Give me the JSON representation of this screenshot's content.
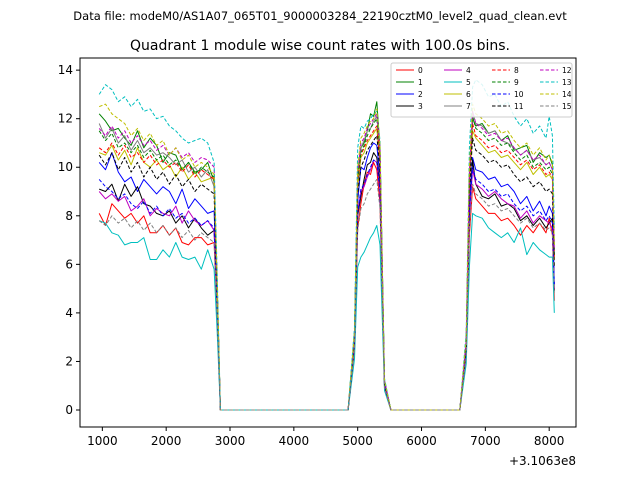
{
  "suptitle": "Data file: modeM0/AS1A07_065T01_9000003284_22190cztM0_level2_quad_clean.evt",
  "chart_data": {
    "type": "line",
    "title": "Quadrant 1 module wise count rates with 100.0s bins.",
    "xlabel": "",
    "ylabel": "",
    "x_offset_label": "+3.1063e8",
    "xlim": [
      650,
      8420
    ],
    "ylim": [
      -0.7,
      14.5
    ],
    "xticks": [
      1000,
      2000,
      3000,
      4000,
      5000,
      6000,
      7000,
      8000
    ],
    "yticks": [
      0,
      2,
      4,
      6,
      8,
      10,
      12,
      14
    ],
    "legend_position": "top-right",
    "x": [
      950,
      1050,
      1150,
      1250,
      1350,
      1450,
      1550,
      1650,
      1750,
      1850,
      1950,
      2050,
      2150,
      2250,
      2350,
      2450,
      2550,
      2650,
      2750,
      2800,
      2850,
      2880,
      4850,
      4950,
      5000,
      5050,
      5100,
      5150,
      5200,
      5250,
      5300,
      5350,
      5420,
      5520,
      6600,
      6700,
      6750,
      6800,
      6850,
      6950,
      7050,
      7150,
      7250,
      7350,
      7450,
      7550,
      7650,
      7750,
      7850,
      7950,
      8000,
      8050,
      8080
    ],
    "series": [
      {
        "name": "0",
        "color": "#ff0000",
        "style": "solid",
        "values": [
          8.1,
          7.6,
          8.5,
          8.2,
          7.9,
          8.1,
          7.7,
          8.0,
          7.3,
          7.3,
          7.6,
          7.2,
          7.5,
          6.9,
          6.8,
          7.1,
          7.1,
          6.8,
          6.9,
          4.0,
          0.0,
          0.0,
          0.0,
          2.5,
          7.5,
          8.5,
          9.3,
          9.8,
          9.7,
          10.2,
          9.9,
          8.5,
          0.9,
          0.0,
          0.0,
          2.2,
          7.2,
          9.2,
          8.7,
          8.4,
          8.1,
          8.1,
          7.8,
          7.9,
          7.6,
          7.2,
          7.6,
          7.3,
          7.7,
          7.3,
          7.9,
          7.2,
          4.5
        ]
      },
      {
        "name": "1",
        "color": "#008000",
        "style": "solid",
        "values": [
          12.2,
          11.9,
          11.5,
          11.6,
          11.2,
          10.9,
          11.5,
          10.8,
          11.2,
          10.9,
          10.2,
          10.6,
          10.5,
          9.9,
          10.2,
          9.8,
          9.9,
          10.2,
          9.4,
          5.0,
          0.0,
          0.0,
          0.0,
          3.2,
          9.6,
          10.8,
          11.0,
          11.5,
          12.2,
          12.1,
          12.7,
          10.8,
          1.2,
          0.0,
          0.0,
          2.8,
          9.6,
          12.0,
          11.7,
          11.8,
          11.4,
          11.5,
          11.1,
          11.3,
          10.7,
          10.8,
          10.9,
          10.2,
          10.6,
          10.4,
          10.5,
          10.1,
          6.8
        ]
      },
      {
        "name": "2",
        "color": "#0000ff",
        "style": "solid",
        "values": [
          10.2,
          9.9,
          10.6,
          9.8,
          9.4,
          9.6,
          9.0,
          9.5,
          9.2,
          8.9,
          9.2,
          9.0,
          8.5,
          9.1,
          8.3,
          8.7,
          8.4,
          8.1,
          8.2,
          4.4,
          0.0,
          0.0,
          0.0,
          2.9,
          8.6,
          10.0,
          9.9,
          10.4,
          10.8,
          11.0,
          10.9,
          9.6,
          1.1,
          0.0,
          0.0,
          2.5,
          8.6,
          10.4,
          9.9,
          9.8,
          9.5,
          9.6,
          9.2,
          9.3,
          9.0,
          8.5,
          8.8,
          8.2,
          8.6,
          8.0,
          8.4,
          8.1,
          5.2
        ]
      },
      {
        "name": "3",
        "color": "#000000",
        "style": "solid",
        "values": [
          9.1,
          9.0,
          9.3,
          8.6,
          9.3,
          8.8,
          9.2,
          8.5,
          8.4,
          8.1,
          8.0,
          8.2,
          7.7,
          8.0,
          7.5,
          7.9,
          7.5,
          7.2,
          7.4,
          4.1,
          0.0,
          0.0,
          0.0,
          2.7,
          8.0,
          8.8,
          9.5,
          10.1,
          10.2,
          10.6,
          10.4,
          9.2,
          1.0,
          0.0,
          0.0,
          2.4,
          8.0,
          10.3,
          9.3,
          8.8,
          8.7,
          8.9,
          8.4,
          8.5,
          8.3,
          7.8,
          8.0,
          7.6,
          7.9,
          7.5,
          7.7,
          7.9,
          4.9
        ]
      },
      {
        "name": "4",
        "color": "#bf00bf",
        "style": "solid",
        "values": [
          9.0,
          8.7,
          8.9,
          8.6,
          8.8,
          8.2,
          8.4,
          8.7,
          8.0,
          8.3,
          8.1,
          8.0,
          8.4,
          7.7,
          8.2,
          7.8,
          7.6,
          7.8,
          7.4,
          4.2,
          0.0,
          0.0,
          0.0,
          2.8,
          8.2,
          9.0,
          9.2,
          9.6,
          9.9,
          10.3,
          10.2,
          9.0,
          1.0,
          0.0,
          0.0,
          2.4,
          8.0,
          9.9,
          9.3,
          9.1,
          8.8,
          9.0,
          8.7,
          8.5,
          8.4,
          7.9,
          8.2,
          7.7,
          8.0,
          7.8,
          7.7,
          7.5,
          5.0
        ]
      },
      {
        "name": "5",
        "color": "#00bfbf",
        "style": "solid",
        "values": [
          7.8,
          7.7,
          7.3,
          7.2,
          6.8,
          6.9,
          6.9,
          7.1,
          6.2,
          6.2,
          6.6,
          6.3,
          6.9,
          6.3,
          6.2,
          6.3,
          5.8,
          6.6,
          5.8,
          3.2,
          0.0,
          0.0,
          0.0,
          2.1,
          5.9,
          6.3,
          6.5,
          6.8,
          7.1,
          7.3,
          7.6,
          6.8,
          0.8,
          0.0,
          0.0,
          1.9,
          5.9,
          8.1,
          8.0,
          7.9,
          7.5,
          7.3,
          7.1,
          7.3,
          6.9,
          7.5,
          6.4,
          6.9,
          6.6,
          6.4,
          6.3,
          6.3,
          4.0
        ]
      },
      {
        "name": "6",
        "color": "#bfbf00",
        "style": "solid",
        "values": [
          10.6,
          10.5,
          10.9,
          10.3,
          10.7,
          10.1,
          10.8,
          10.2,
          10.0,
          10.3,
          9.9,
          10.1,
          9.6,
          10.0,
          9.5,
          9.8,
          9.4,
          9.5,
          9.6,
          4.9,
          0.0,
          0.0,
          0.0,
          3.0,
          9.2,
          10.4,
          10.6,
          11.0,
          11.2,
          11.4,
          11.6,
          10.2,
          1.1,
          0.0,
          0.0,
          2.7,
          9.3,
          11.5,
          11.2,
          10.9,
          10.6,
          10.7,
          10.4,
          10.5,
          10.2,
          9.9,
          10.2,
          9.7,
          10.0,
          9.6,
          9.7,
          9.5,
          6.2
        ]
      },
      {
        "name": "7",
        "color": "#808080",
        "style": "solid",
        "values": [
          11.8,
          11.2,
          11.6,
          11.0,
          11.3,
          10.7,
          11.1,
          10.6,
          10.8,
          10.5,
          10.6,
          10.4,
          10.1,
          10.3,
          9.8,
          10.0,
          9.6,
          9.9,
          9.2,
          5.1,
          0.0,
          0.0,
          0.0,
          3.1,
          9.6,
          10.8,
          11.1,
          11.5,
          11.6,
          11.9,
          12.1,
          10.7,
          1.2,
          0.0,
          0.0,
          2.8,
          9.7,
          12.3,
          11.8,
          11.7,
          11.4,
          11.5,
          11.1,
          11.0,
          10.8,
          10.5,
          10.7,
          10.3,
          10.4,
          10.1,
          10.2,
          9.9,
          6.5
        ]
      },
      {
        "name": "8",
        "color": "#ff0000",
        "style": "dashed",
        "values": [
          10.8,
          10.6,
          11.0,
          10.5,
          10.9,
          10.4,
          10.6,
          10.2,
          10.5,
          10.1,
          10.3,
          10.0,
          10.2,
          9.8,
          10.1,
          9.6,
          9.9,
          9.7,
          9.5,
          5.0,
          0.0,
          0.0,
          0.0,
          3.0,
          9.4,
          10.5,
          10.8,
          11.1,
          11.3,
          11.5,
          11.7,
          10.3,
          1.1,
          0.0,
          0.0,
          2.7,
          9.5,
          11.8,
          11.3,
          11.1,
          10.8,
          10.9,
          10.6,
          10.7,
          10.4,
          10.1,
          10.3,
          9.9,
          10.1,
          9.7,
          9.8,
          9.6,
          6.3
        ]
      },
      {
        "name": "9",
        "color": "#008000",
        "style": "dashed",
        "values": [
          11.5,
          11.1,
          11.4,
          10.8,
          11.0,
          10.6,
          10.9,
          10.4,
          10.7,
          10.3,
          10.5,
          10.1,
          10.3,
          9.9,
          10.2,
          9.7,
          10.0,
          9.8,
          9.6,
          5.0,
          0.0,
          0.0,
          0.0,
          3.1,
          9.5,
          10.6,
          10.9,
          11.3,
          11.6,
          11.8,
          12.0,
          10.6,
          1.2,
          0.0,
          0.0,
          2.8,
          9.6,
          12.1,
          11.6,
          11.4,
          11.1,
          11.2,
          10.9,
          11.0,
          10.6,
          10.3,
          10.5,
          10.0,
          10.2,
          9.9,
          10.0,
          9.7,
          6.4
        ]
      },
      {
        "name": "10",
        "color": "#0000ff",
        "style": "dashed",
        "values": [
          9.5,
          9.2,
          9.0,
          8.7,
          8.9,
          8.5,
          8.3,
          8.6,
          8.1,
          8.4,
          8.0,
          8.3,
          7.9,
          8.1,
          7.7,
          7.9,
          7.6,
          7.8,
          7.5,
          4.2,
          0.0,
          0.0,
          0.0,
          2.8,
          8.1,
          9.1,
          9.3,
          9.7,
          10.0,
          10.3,
          10.2,
          9.0,
          1.0,
          0.0,
          0.0,
          2.5,
          8.2,
          10.0,
          9.5,
          9.3,
          9.0,
          9.1,
          8.8,
          8.9,
          8.5,
          8.2,
          8.4,
          8.0,
          8.2,
          7.8,
          8.0,
          7.7,
          5.1
        ]
      },
      {
        "name": "11",
        "color": "#000000",
        "style": "dashed",
        "values": [
          10.5,
          10.1,
          10.6,
          9.9,
          10.4,
          9.8,
          10.2,
          9.6,
          10.0,
          9.5,
          9.8,
          9.3,
          9.7,
          9.2,
          9.5,
          9.0,
          9.3,
          9.1,
          8.9,
          4.7,
          0.0,
          0.0,
          0.0,
          2.9,
          8.9,
          10.0,
          10.3,
          10.7,
          10.9,
          11.1,
          11.3,
          9.9,
          1.1,
          0.0,
          0.0,
          2.6,
          9.0,
          11.2,
          10.7,
          10.5,
          10.2,
          10.3,
          10.0,
          10.1,
          9.7,
          9.4,
          9.6,
          9.2,
          9.4,
          9.0,
          9.1,
          8.9,
          5.9
        ]
      },
      {
        "name": "12",
        "color": "#bf00bf",
        "style": "dashed",
        "values": [
          11.6,
          11.3,
          11.7,
          11.2,
          11.5,
          11.0,
          11.3,
          10.9,
          11.1,
          10.7,
          10.9,
          10.5,
          10.8,
          10.4,
          10.6,
          10.2,
          10.4,
          10.3,
          10.0,
          5.2,
          0.0,
          0.0,
          0.0,
          3.1,
          9.8,
          11.0,
          11.2,
          11.6,
          11.8,
          12.0,
          12.2,
          10.8,
          1.2,
          0.0,
          0.0,
          2.9,
          9.8,
          12.3,
          11.8,
          11.6,
          11.3,
          11.4,
          11.1,
          11.2,
          10.8,
          10.5,
          10.7,
          10.3,
          10.5,
          10.1,
          10.2,
          9.9,
          6.6
        ]
      },
      {
        "name": "13",
        "color": "#00bfbf",
        "style": "dashed",
        "values": [
          13.0,
          13.4,
          13.2,
          12.7,
          12.9,
          12.5,
          12.8,
          12.3,
          12.4,
          12.0,
          12.1,
          11.7,
          11.5,
          11.2,
          11.0,
          11.1,
          11.2,
          11.0,
          10.2,
          5.6,
          0.0,
          0.0,
          0.0,
          3.4,
          10.8,
          11.7,
          11.6,
          11.9,
          12.0,
          12.2,
          12.3,
          11.1,
          1.3,
          0.0,
          0.0,
          3.2,
          10.8,
          13.3,
          13.6,
          13.4,
          12.9,
          13.0,
          12.5,
          12.7,
          12.1,
          11.7,
          12.0,
          11.4,
          11.7,
          11.2,
          12.1,
          11.3,
          7.5
        ]
      },
      {
        "name": "14",
        "color": "#bfbf00",
        "style": "dashed",
        "values": [
          12.5,
          12.6,
          12.2,
          12.0,
          11.8,
          11.3,
          11.6,
          11.1,
          11.4,
          10.9,
          11.1,
          10.5,
          10.8,
          10.3,
          10.5,
          10.0,
          10.2,
          10.0,
          9.7,
          5.2,
          0.0,
          0.0,
          0.0,
          3.2,
          10.0,
          11.2,
          11.4,
          11.7,
          11.9,
          12.0,
          12.4,
          10.9,
          1.2,
          0.0,
          0.0,
          2.9,
          10.0,
          12.6,
          12.2,
          12.0,
          11.7,
          11.8,
          11.4,
          11.5,
          11.1,
          10.8,
          11.0,
          10.5,
          10.8,
          10.3,
          10.5,
          10.2,
          6.8
        ]
      },
      {
        "name": "15",
        "color": "#808080",
        "style": "dashed",
        "values": [
          7.8,
          7.6,
          8.0,
          7.7,
          7.9,
          7.5,
          7.8,
          7.4,
          7.7,
          7.3,
          7.6,
          7.2,
          7.5,
          7.1,
          7.4,
          7.0,
          7.3,
          7.1,
          6.9,
          3.8,
          0.0,
          0.0,
          0.0,
          2.5,
          7.4,
          8.3,
          8.5,
          8.9,
          9.1,
          9.3,
          9.5,
          8.3,
          0.9,
          0.0,
          0.0,
          2.2,
          7.5,
          9.3,
          8.9,
          8.7,
          8.4,
          8.5,
          8.2,
          8.3,
          8.0,
          7.7,
          7.9,
          7.5,
          7.7,
          7.4,
          7.5,
          7.3,
          4.8
        ]
      }
    ]
  }
}
